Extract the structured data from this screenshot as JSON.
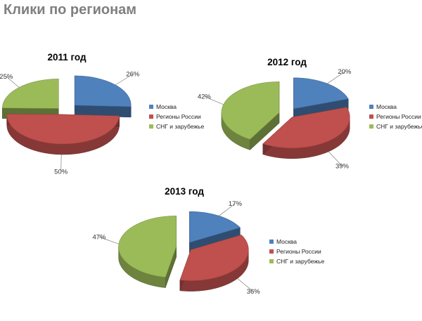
{
  "page": {
    "title": "Клики по регионам"
  },
  "colors": {
    "Москва": "#4F81BD",
    "Регионы России": "#C0504D",
    "СНГ и зарубежье": "#9BBB59"
  },
  "chart_data": [
    {
      "type": "pie",
      "title": "2011 год",
      "categories": [
        "Москва",
        "Регионы России",
        "СНГ и зарубежье"
      ],
      "values": [
        26,
        50,
        25
      ],
      "labels": [
        "26%",
        "50%",
        "25%"
      ],
      "legend": "right",
      "exploded": true,
      "three_d": true
    },
    {
      "type": "pie",
      "title": "2012 год",
      "categories": [
        "Москва",
        "Регионы России",
        "СНГ и зарубежье"
      ],
      "values": [
        20,
        39,
        42
      ],
      "labels": [
        "20%",
        "39%",
        "42%"
      ],
      "legend": "right",
      "exploded": true,
      "three_d": true
    },
    {
      "type": "pie",
      "title": "2013 год",
      "categories": [
        "Москва",
        "Регионы России",
        "СНГ и зарубежье"
      ],
      "values": [
        17,
        36,
        47
      ],
      "labels": [
        "17%",
        "36%",
        "47%"
      ],
      "legend": "right",
      "exploded": true,
      "three_d": true
    }
  ]
}
